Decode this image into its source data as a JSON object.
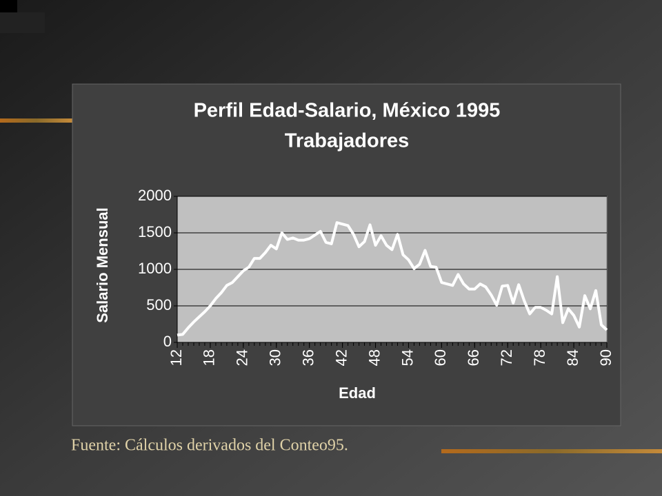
{
  "chart_data": {
    "type": "line",
    "title": "Perfil Edad-Salario, México 1995",
    "subtitle": "Trabajadores",
    "xlabel": "Edad",
    "ylabel": "Salario Mensual",
    "note": "Fuente:  Cálculos derivados del Conteo95.",
    "x": [
      12,
      13,
      14,
      15,
      16,
      17,
      18,
      19,
      20,
      21,
      22,
      23,
      24,
      25,
      26,
      27,
      28,
      29,
      30,
      31,
      32,
      33,
      34,
      35,
      36,
      37,
      38,
      39,
      40,
      41,
      42,
      43,
      44,
      45,
      46,
      47,
      48,
      49,
      50,
      51,
      52,
      53,
      54,
      55,
      56,
      57,
      58,
      59,
      60,
      61,
      62,
      63,
      64,
      65,
      66,
      67,
      68,
      69,
      70,
      71,
      72,
      73,
      74,
      75,
      76,
      77,
      78,
      79,
      80,
      81,
      82,
      83,
      84,
      85,
      86,
      87,
      88,
      89,
      90
    ],
    "series": [
      {
        "name": "Salario Mensual",
        "color": "#ffffff",
        "values": [
          100,
          110,
          200,
          280,
          350,
          420,
          500,
          600,
          680,
          780,
          820,
          900,
          980,
          1030,
          1150,
          1150,
          1230,
          1330,
          1280,
          1500,
          1410,
          1430,
          1400,
          1400,
          1420,
          1470,
          1520,
          1370,
          1350,
          1640,
          1620,
          1600,
          1480,
          1310,
          1380,
          1610,
          1330,
          1460,
          1330,
          1270,
          1480,
          1200,
          1130,
          1010,
          1070,
          1260,
          1040,
          1030,
          820,
          800,
          780,
          930,
          800,
          730,
          730,
          800,
          760,
          650,
          510,
          770,
          780,
          540,
          790,
          570,
          390,
          480,
          480,
          440,
          390,
          900,
          270,
          460,
          370,
          210,
          640,
          460,
          710,
          240,
          170
        ]
      }
    ],
    "xlim": [
      12,
      90
    ],
    "xticks": [
      12,
      18,
      24,
      30,
      36,
      42,
      48,
      54,
      60,
      66,
      72,
      78,
      84,
      90
    ],
    "ylim": [
      0,
      2000
    ],
    "yticks": [
      0,
      500,
      1000,
      1500,
      2000
    ],
    "grid": true,
    "plot_color": "#c0c0c0"
  }
}
